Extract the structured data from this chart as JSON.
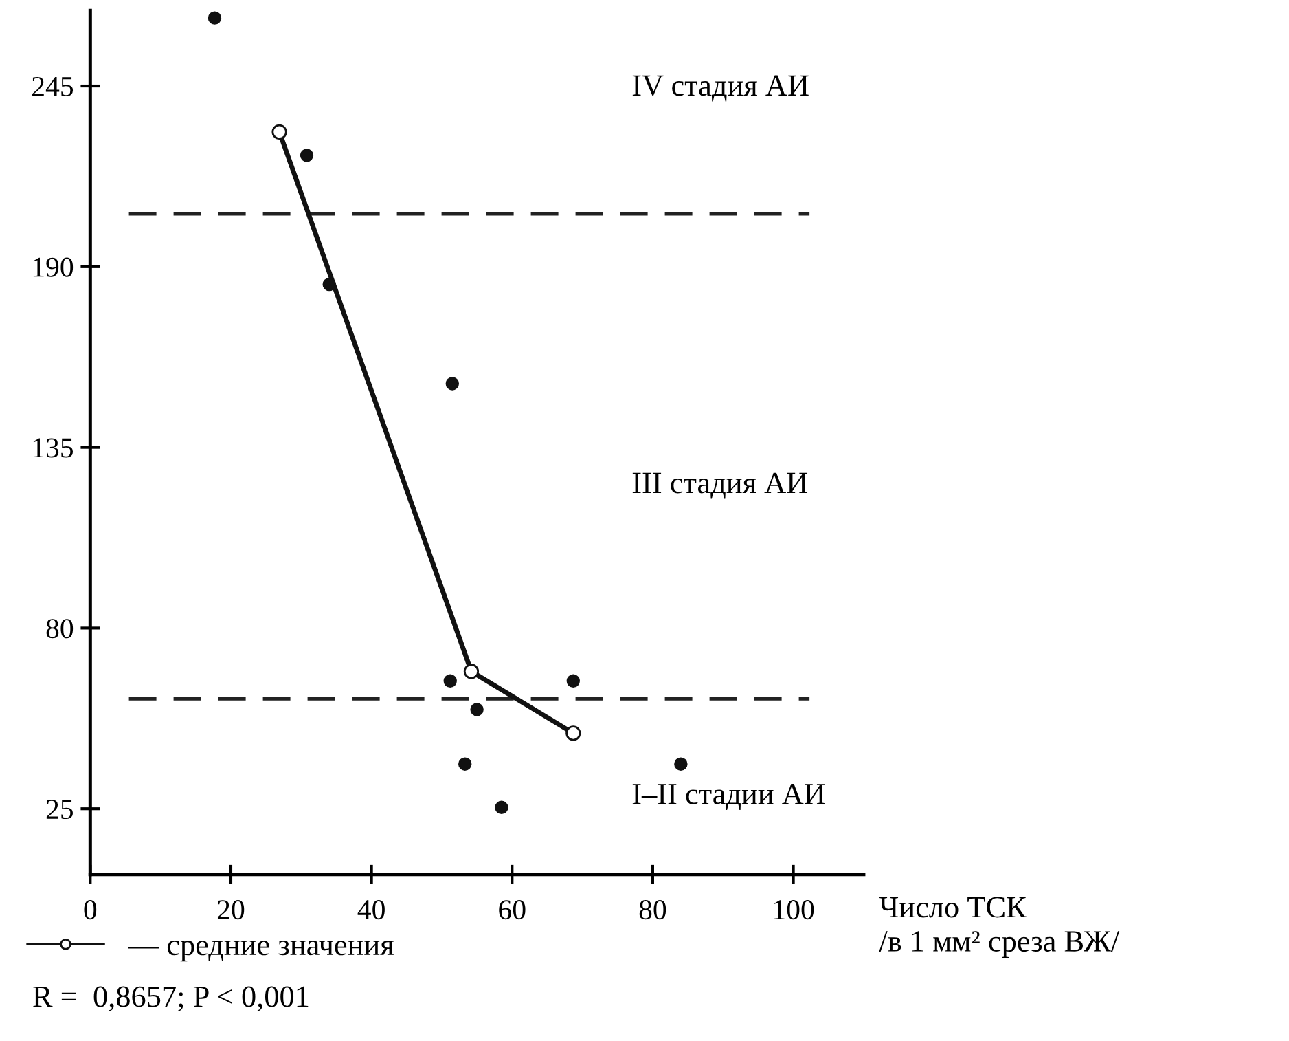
{
  "chart_data": {
    "type": "scatter",
    "xlabel": "Число ТСК\n/в 1 мм² среза ВЖ/",
    "xlim": [
      0,
      110
    ],
    "xticks": [
      0,
      20,
      40,
      60,
      80,
      100
    ],
    "ylim": [
      5,
      268
    ],
    "yticks": [
      25,
      80,
      135,
      190,
      245
    ],
    "grid": false,
    "legend": "bottom left",
    "series": [
      {
        "color": "#111111",
        "marker": "circle",
        "x": [
          17.7,
          30.8,
          34,
          51.5,
          51.2,
          55,
          53.3,
          58.5,
          68.7,
          84
        ],
        "values": [
          265.7,
          223.9,
          184.6,
          154.4,
          63.9,
          55.2,
          38.6,
          25.4,
          63.9,
          38.6
        ]
      },
      {
        "type": "line",
        "name": "— средние значения",
        "color": "#111111",
        "marker": "circle",
        "line_style": "solid",
        "x": [
          26.9,
          54.2,
          68.7
        ],
        "values": [
          231,
          66.8,
          48
        ]
      }
    ],
    "ref_lines": [
      {
        "axis": "y",
        "value": 206.1,
        "line_style": "dashed",
        "color": "#222222"
      },
      {
        "axis": "y",
        "value": 58.5,
        "line_style": "dashed",
        "color": "#222222"
      }
    ],
    "annotations": [
      "IV стадия АИ",
      "III стадия АИ",
      "I–II стадии АИ",
      "R =  0,8657; P < 0,001"
    ]
  }
}
